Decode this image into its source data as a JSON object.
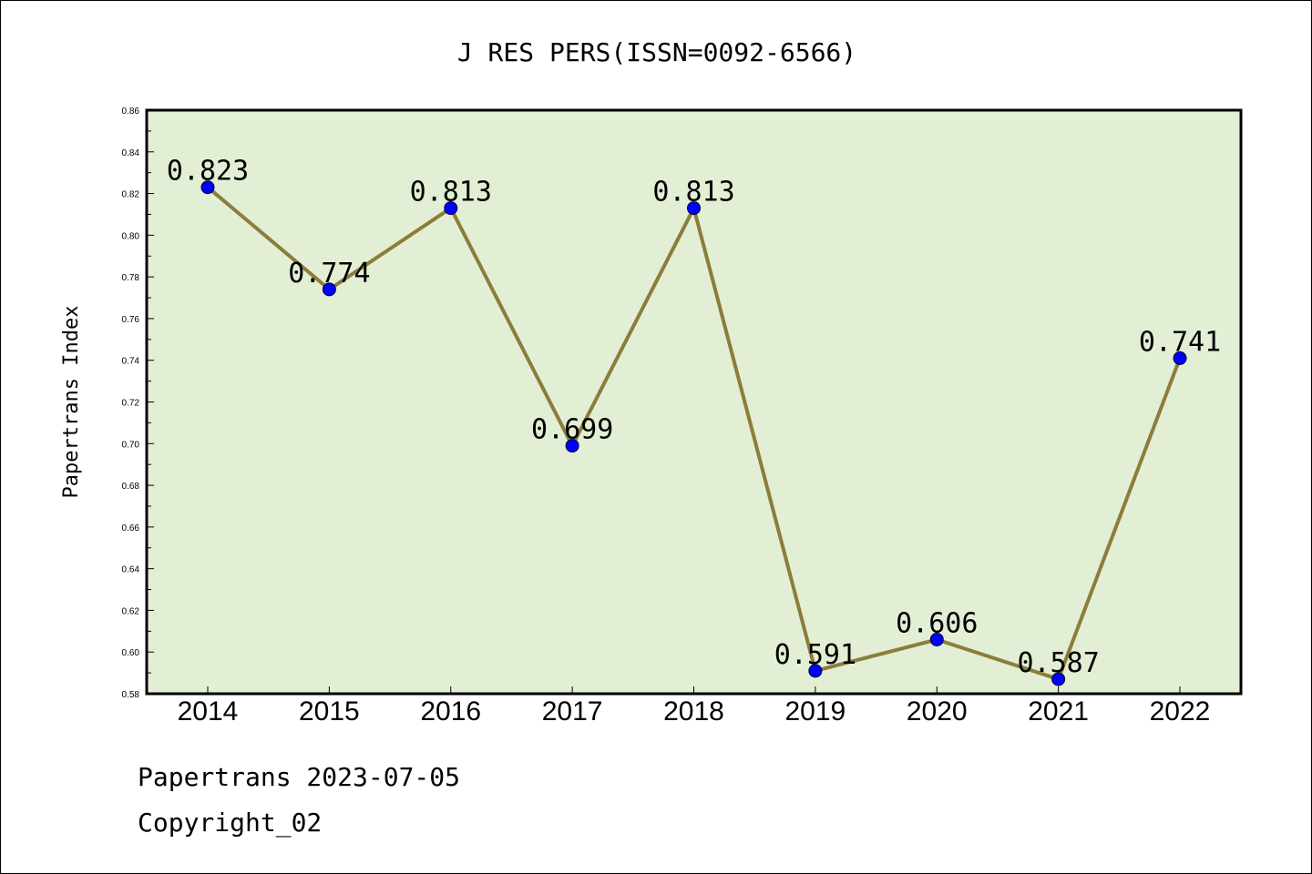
{
  "chart_data": {
    "type": "line",
    "title": "J RES PERS(ISSN=0092-6566)",
    "xlabel": "",
    "ylabel": "Papertrans Index",
    "categories": [
      "2014",
      "2015",
      "2016",
      "2017",
      "2018",
      "2019",
      "2020",
      "2021",
      "2022"
    ],
    "series": [
      {
        "values": [
          0.823,
          0.774,
          0.813,
          0.699,
          0.813,
          0.591,
          0.606,
          0.587,
          0.741
        ],
        "data_labels": [
          "0.823",
          "0.774",
          "0.813",
          "0.699",
          "0.813",
          "0.591",
          "0.606",
          "0.587",
          "0.741"
        ]
      }
    ],
    "ylim": [
      0.58,
      0.86
    ],
    "yticks": [
      "0.58",
      "0.60",
      "0.62",
      "0.64",
      "0.66",
      "0.68",
      "0.70",
      "0.72",
      "0.74",
      "0.76",
      "0.78",
      "0.80",
      "0.82",
      "0.84",
      "0.86"
    ],
    "grid": false,
    "legend": "none",
    "colors": {
      "plot_background": "#e2efd5",
      "line": "#8b7d3a",
      "marker": "#0000ff",
      "axis": "#000000"
    }
  },
  "footer": {
    "date_text": "Papertrans 2023-07-05",
    "copyright_text": "Copyright_02"
  }
}
